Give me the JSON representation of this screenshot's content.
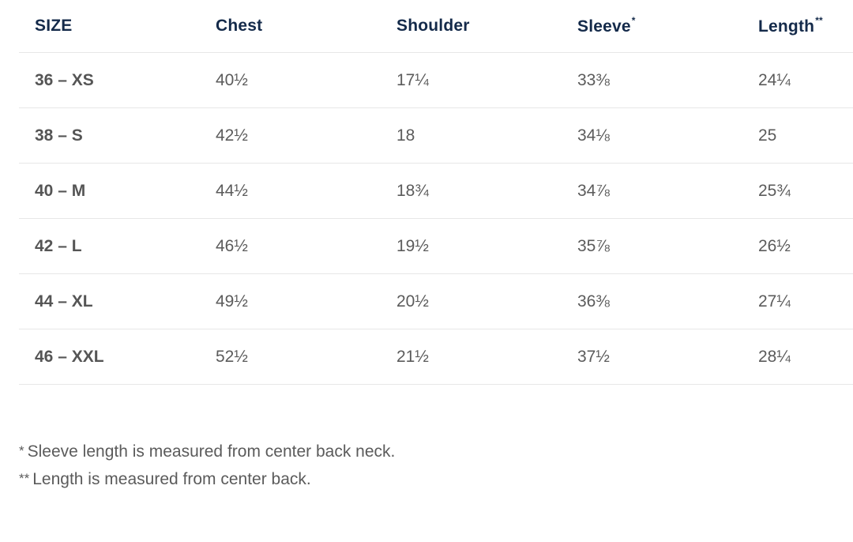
{
  "table": {
    "headers": {
      "size": "SIZE",
      "chest": "Chest",
      "shoulder": "Shoulder",
      "sleeve": "Sleeve",
      "sleeve_mark": "*",
      "length": "Length",
      "length_mark": "**"
    },
    "rows": [
      {
        "size": "36 – XS",
        "chest": "40½",
        "shoulder": "17¼",
        "sleeve": "33⅜",
        "length": "24¼"
      },
      {
        "size": "38 – S",
        "chest": "42½",
        "shoulder": "18",
        "sleeve": "34⅛",
        "length": "25"
      },
      {
        "size": "40 – M",
        "chest": "44½",
        "shoulder": "18¾",
        "sleeve": "34⅞",
        "length": "25¾"
      },
      {
        "size": "42 – L",
        "chest": "46½",
        "shoulder": "19½",
        "sleeve": "35⅞",
        "length": "26½"
      },
      {
        "size": "44 – XL",
        "chest": "49½",
        "shoulder": "20½",
        "sleeve": "36⅜",
        "length": "27¼"
      },
      {
        "size": "46 – XXL",
        "chest": "52½",
        "shoulder": "21½",
        "sleeve": "37½",
        "length": "28¼"
      }
    ]
  },
  "footnotes": [
    {
      "mark": "*",
      "text": "Sleeve length is measured from center back neck."
    },
    {
      "mark": "**",
      "text": "Length is measured from center back."
    }
  ],
  "colors": {
    "header_text": "#142a4a",
    "body_text": "#5b5b5b",
    "divider": "#e7e7e7"
  }
}
